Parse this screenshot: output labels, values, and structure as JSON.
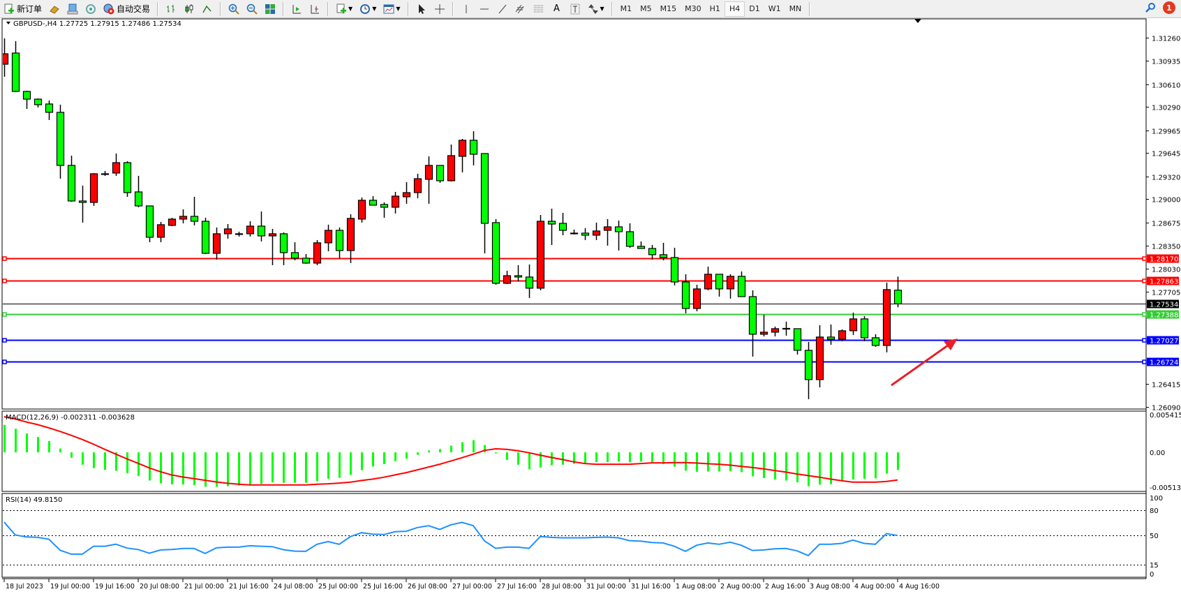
{
  "toolbar": {
    "new_order_label": "新订单",
    "auto_trading_label": "自动交易",
    "timeframes": [
      "M1",
      "M5",
      "M15",
      "M30",
      "H1",
      "H4",
      "D1",
      "W1",
      "MN"
    ],
    "active_timeframe": "H4",
    "notification_count": "1"
  },
  "chart_header": {
    "symbol_info": "GBPUSD-,H4  1.27725 1.27915 1.27486 1.27534"
  },
  "colors": {
    "bull_candle": "#ff0000",
    "bear_candle": "#00ff00",
    "macd_histogram": "#00ff00",
    "macd_signal": "#ff0000",
    "rsi_line": "#1e90ff",
    "level_red": "#ff0000",
    "level_green": "#32cd32",
    "level_blue": "#0000ff",
    "current_price": "#000000",
    "annotation_arrow": "#e8202a"
  },
  "chart_data": [
    {
      "type": "candlestick",
      "symbol": "GBPUSD-",
      "timeframe": "H4",
      "ylim": [
        1.26061,
        1.31524
      ],
      "price_axis_ticks": [
        "1.31260",
        "1.30935",
        "1.30610",
        "1.30290",
        "1.29965",
        "1.29645",
        "1.29320",
        "1.29000",
        "1.28675",
        "1.28350",
        "1.28030",
        "1.27705",
        "1.26415",
        "1.26090"
      ],
      "time_labels": [
        "18 Jul 2023",
        "19 Jul 00:00",
        "19 Jul 16:00",
        "20 Jul 08:00",
        "21 Jul 00:00",
        "21 Jul 16:00",
        "24 Jul 08:00",
        "25 Jul 00:00",
        "25 Jul 16:00",
        "26 Jul 08:00",
        "27 Jul 00:00",
        "27 Jul 16:00",
        "28 Jul 08:00",
        "31 Jul 00:00",
        "31 Jul 16:00",
        "1 Aug 08:00",
        "2 Aug 00:00",
        "2 Aug 16:00",
        "3 Aug 08:00",
        "4 Aug 00:00",
        "4 Aug 16:00"
      ],
      "time_label_every_n_bars": 4,
      "ohlc": [
        [
          1.30889,
          1.3125,
          1.30713,
          1.31035
        ],
        [
          1.31045,
          1.31211,
          1.30498,
          1.30508
        ],
        [
          1.30508,
          1.30517,
          1.30263,
          1.304
        ],
        [
          1.304,
          1.3041,
          1.30283,
          1.30322
        ],
        [
          1.30332,
          1.30381,
          1.30107,
          1.30215
        ],
        [
          1.30215,
          1.30322,
          1.29286,
          1.29472
        ],
        [
          1.29472,
          1.29609,
          1.28964,
          1.28974
        ],
        [
          1.28974,
          1.29189,
          1.28671,
          1.28954
        ],
        [
          1.28954,
          1.29365,
          1.28905,
          1.29355
        ],
        [
          1.29355,
          1.29394,
          1.29326,
          1.2935
        ],
        [
          1.29365,
          1.29638,
          1.29326,
          1.29511
        ],
        [
          1.29511,
          1.29531,
          1.29032,
          1.29091
        ],
        [
          1.29101,
          1.29326,
          1.28886,
          1.28905
        ],
        [
          1.28905,
          1.28905,
          1.28397,
          1.28466
        ],
        [
          1.28466,
          1.28681,
          1.28397,
          1.28642
        ],
        [
          1.28632,
          1.28739,
          1.28622,
          1.2872
        ],
        [
          1.2872,
          1.28857,
          1.28661,
          1.28759
        ],
        [
          1.28759,
          1.29032,
          1.28632,
          1.2869
        ],
        [
          1.2869,
          1.28739,
          1.28231,
          1.28241
        ],
        [
          1.28241,
          1.28603,
          1.28153,
          1.28515
        ],
        [
          1.28515,
          1.28651,
          1.28446,
          1.28583
        ],
        [
          1.28515,
          1.28544,
          1.28476,
          1.2851
        ],
        [
          1.28515,
          1.2869,
          1.28476,
          1.28622
        ],
        [
          1.28622,
          1.28827,
          1.28407,
          1.28485
        ],
        [
          1.28485,
          1.28583,
          1.28075,
          1.28515
        ],
        [
          1.28515,
          1.28534,
          1.28075,
          1.28251
        ],
        [
          1.28251,
          1.28397,
          1.28143,
          1.28173
        ],
        [
          1.28173,
          1.28231,
          1.28095,
          1.28104
        ],
        [
          1.28104,
          1.28427,
          1.28075,
          1.28388
        ],
        [
          1.28388,
          1.28642,
          1.2827,
          1.28563
        ],
        [
          1.28563,
          1.28603,
          1.28173,
          1.2828
        ],
        [
          1.2828,
          1.28788,
          1.28104,
          1.2873
        ],
        [
          1.2872,
          1.29023,
          1.28671,
          1.28984
        ],
        [
          1.28984,
          1.29042,
          1.28915,
          1.28915
        ],
        [
          1.28925,
          1.28954,
          1.28739,
          1.28886
        ],
        [
          1.28886,
          1.29101,
          1.28798,
          1.29042
        ],
        [
          1.29032,
          1.29238,
          1.28935,
          1.29091
        ],
        [
          1.29091,
          1.29355,
          1.29013,
          1.29286
        ],
        [
          1.29277,
          1.29599,
          1.28935,
          1.29472
        ],
        [
          1.29472,
          1.29472,
          1.29228,
          1.29257
        ],
        [
          1.29257,
          1.29765,
          1.29247,
          1.29609
        ],
        [
          1.29599,
          1.29843,
          1.29374,
          1.29824
        ],
        [
          1.29824,
          1.29951,
          1.29472,
          1.29628
        ],
        [
          1.29638,
          1.29638,
          1.28241,
          1.28661
        ],
        [
          1.28671,
          1.2872,
          1.27801,
          1.27821
        ],
        [
          1.27821,
          1.27997,
          1.27811,
          1.27928
        ],
        [
          1.27928,
          1.28075,
          1.2785,
          1.27909
        ],
        [
          1.27909,
          1.28085,
          1.27616,
          1.27753
        ],
        [
          1.27753,
          1.28778,
          1.27723,
          1.2869
        ],
        [
          1.2869,
          1.28866,
          1.28358,
          1.28651
        ],
        [
          1.28661,
          1.28808,
          1.28495,
          1.28563
        ],
        [
          1.28524,
          1.28573,
          1.28505,
          1.2852
        ],
        [
          1.28524,
          1.28593,
          1.28427,
          1.28495
        ],
        [
          1.28495,
          1.28671,
          1.28427,
          1.28554
        ],
        [
          1.28563,
          1.2872,
          1.28349,
          1.28612
        ],
        [
          1.28612,
          1.287,
          1.2828,
          1.28544
        ],
        [
          1.28544,
          1.28661,
          1.28319,
          1.28339
        ],
        [
          1.28339,
          1.28407,
          1.28309,
          1.28309
        ],
        [
          1.28309,
          1.28358,
          1.28153,
          1.28222
        ],
        [
          1.28222,
          1.28388,
          1.28143,
          1.28182
        ],
        [
          1.28182,
          1.28319,
          1.27792,
          1.2784
        ],
        [
          1.2784,
          1.27948,
          1.27401,
          1.27469
        ],
        [
          1.27469,
          1.27801,
          1.2743,
          1.27743
        ],
        [
          1.27743,
          1.28055,
          1.27723,
          1.27948
        ],
        [
          1.27948,
          1.27948,
          1.27635,
          1.27743
        ],
        [
          1.27743,
          1.27948,
          1.27606,
          1.27919
        ],
        [
          1.27919,
          1.27987,
          1.27635,
          1.27635
        ],
        [
          1.27635,
          1.27723,
          1.26795,
          1.27108
        ],
        [
          1.27108,
          1.27381,
          1.27078,
          1.27137
        ],
        [
          1.27137,
          1.27215,
          1.27078,
          1.27186
        ],
        [
          1.27186,
          1.27284,
          1.27088,
          1.2719
        ],
        [
          1.27186,
          1.27186,
          1.26824,
          1.26883
        ],
        [
          1.26883,
          1.27,
          1.26199,
          1.26473
        ],
        [
          1.26473,
          1.27235,
          1.26365,
          1.27069
        ],
        [
          1.27069,
          1.27245,
          1.26961,
          1.27039
        ],
        [
          1.27039,
          1.27176,
          1.2701,
          1.27157
        ],
        [
          1.27157,
          1.27411,
          1.27098,
          1.27323
        ],
        [
          1.27323,
          1.27362,
          1.2701,
          1.27059
        ],
        [
          1.27059,
          1.27108,
          1.26932,
          1.26951
        ],
        [
          1.26951,
          1.27831,
          1.26854,
          1.27733
        ],
        [
          1.27725,
          1.27915,
          1.27486,
          1.27534
        ]
      ],
      "horizontal_levels": [
        {
          "price": 1.2817,
          "label": "1.28170",
          "color": "#ff0000"
        },
        {
          "price": 1.27863,
          "label": "1.27863",
          "color": "#ff0000"
        },
        {
          "price": 1.27534,
          "label": "1.27534",
          "color": "#000000"
        },
        {
          "price": 1.27388,
          "label": "1.27388",
          "color": "#32cd32"
        },
        {
          "price": 1.27027,
          "label": "1.27027",
          "color": "#0000ff"
        },
        {
          "price": 1.26724,
          "label": "1.26724",
          "color": "#0000ff"
        }
      ]
    },
    {
      "type": "bar+line",
      "title": "MACD(12,26,9) -0.002311 -0.003628",
      "ylim": [
        -0.00513,
        0.005415
      ],
      "axis_ticks": [
        "0.005415",
        "0.00",
        "-0.00513"
      ],
      "histogram": [
        0.00361,
        0.0031,
        0.00248,
        0.00201,
        0.00148,
        0.0005,
        -0.00071,
        -0.00162,
        -0.00207,
        -0.0023,
        -0.00242,
        -0.00275,
        -0.0031,
        -0.0037,
        -0.00408,
        -0.0042,
        -0.00423,
        -0.00429,
        -0.00452,
        -0.00452,
        -0.00444,
        -0.00435,
        -0.00435,
        -0.00414,
        -0.00394,
        -0.004,
        -0.004,
        -0.004,
        -0.00378,
        -0.00346,
        -0.00334,
        -0.00296,
        -0.00234,
        -0.00186,
        -0.00154,
        -0.00116,
        -0.00082,
        -0.00032,
        0.00024,
        0.00044,
        0.00088,
        0.00133,
        0.0016,
        0.00096,
        -0.00014,
        -0.00098,
        -0.00163,
        -0.00223,
        -0.00199,
        -0.00169,
        -0.00163,
        -0.00151,
        -0.00139,
        -0.00128,
        -0.00128,
        -0.00122,
        -0.00128,
        -0.00122,
        -0.00133,
        -0.00154,
        -0.00187,
        -0.00241,
        -0.00255,
        -0.00252,
        -0.00252,
        -0.00247,
        -0.00261,
        -0.00315,
        -0.00338,
        -0.00356,
        -0.00371,
        -0.00394,
        -0.00445,
        -0.00424,
        -0.00418,
        -0.00377,
        -0.00356,
        -0.00347,
        -0.00341,
        -0.00279,
        -0.002311
      ],
      "signal": [
        0.00468,
        0.00438,
        0.00398,
        0.00364,
        0.00321,
        0.00275,
        0.00223,
        0.00168,
        0.00107,
        0.0004,
        -0.00024,
        -0.00086,
        -0.00144,
        -0.00205,
        -0.00254,
        -0.00297,
        -0.00324,
        -0.00346,
        -0.00367,
        -0.00389,
        -0.00407,
        -0.00419,
        -0.00428,
        -0.00428,
        -0.00428,
        -0.00428,
        -0.00428,
        -0.00428,
        -0.00419,
        -0.00413,
        -0.00404,
        -0.00392,
        -0.0037,
        -0.00352,
        -0.00327,
        -0.00297,
        -0.00266,
        -0.0023,
        -0.00193,
        -0.00156,
        -0.00113,
        -0.0007,
        -0.00024,
        0.00025,
        0.00046,
        0.0004,
        0.00021,
        -6e-05,
        -0.00037,
        -0.00067,
        -0.00095,
        -0.00125,
        -0.00147,
        -0.00156,
        -0.00156,
        -0.00156,
        -0.00156,
        -0.00147,
        -0.00138,
        -0.00138,
        -0.00135,
        -0.00135,
        -0.00141,
        -0.0015,
        -0.00156,
        -0.00168,
        -0.00184,
        -0.00199,
        -0.00217,
        -0.00239,
        -0.0026,
        -0.00285,
        -0.00306,
        -0.00327,
        -0.00352,
        -0.00373,
        -0.00392,
        -0.00392,
        -0.00392,
        -0.00383,
        -0.003628
      ]
    },
    {
      "type": "line",
      "title": "RSI(14) 49.8150",
      "ylim": [
        0,
        100
      ],
      "levels": [
        80,
        50,
        15
      ],
      "axis_ticks": [
        "100",
        "80",
        "50",
        "15",
        "0"
      ],
      "values": [
        65.7,
        50.4,
        48.2,
        47.6,
        45.4,
        32.3,
        27.6,
        27.6,
        37.0,
        37.0,
        39.5,
        34.8,
        33.1,
        28.7,
        32.6,
        33.1,
        34.3,
        34.3,
        28.4,
        35.1,
        35.9,
        35.9,
        37.6,
        37.0,
        36.5,
        32.9,
        31.2,
        30.9,
        39.3,
        42.6,
        39.3,
        48.5,
        53.2,
        51.5,
        51.0,
        54.3,
        54.9,
        59.3,
        61.6,
        57.1,
        62.7,
        65.5,
        61.6,
        43.5,
        34.5,
        35.9,
        35.9,
        34.5,
        48.7,
        47.6,
        47.1,
        47.1,
        47.1,
        47.6,
        47.9,
        47.1,
        43.7,
        43.2,
        41.5,
        40.9,
        37.0,
        30.9,
        38.2,
        40.9,
        39.3,
        41.8,
        38.2,
        32.0,
        32.6,
        34.0,
        34.3,
        31.5,
        25.9,
        39.3,
        39.3,
        40.4,
        44.3,
        40.4,
        39.3,
        52.1,
        49.815
      ]
    }
  ]
}
